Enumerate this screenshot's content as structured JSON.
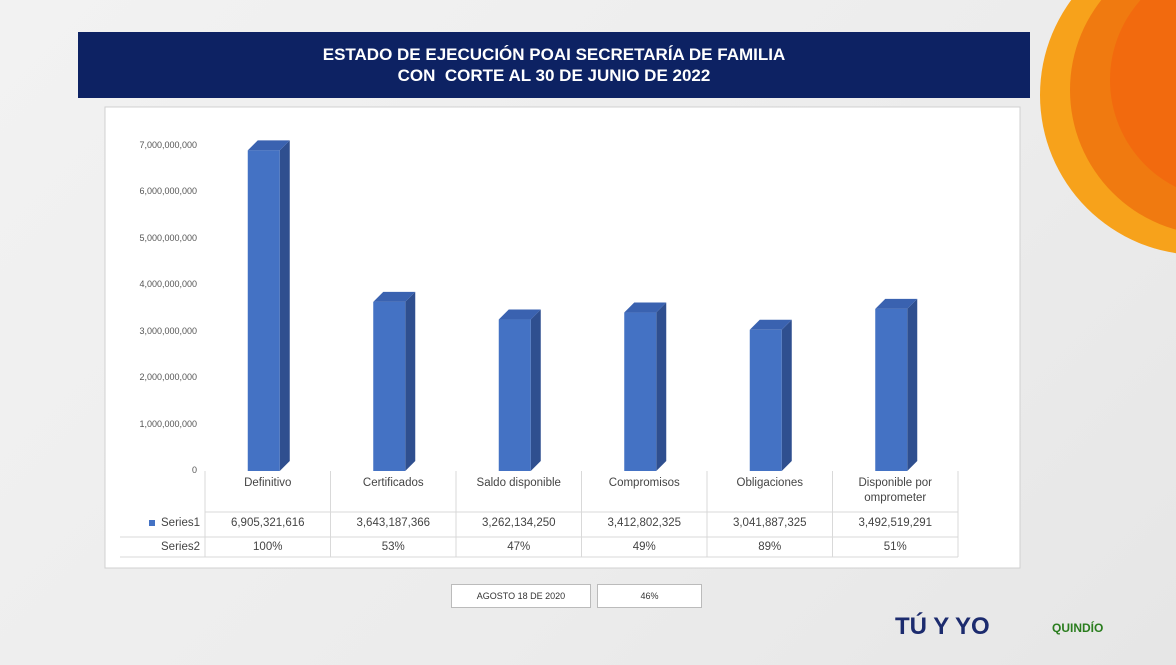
{
  "header": {
    "title": [
      "ESTADO DE EJECUCIÓN POAI SECRETARÍA DE FAMILIA",
      "CON  CORTE AL 30 DE JUNIO DE 2022"
    ]
  },
  "chart_data": {
    "type": "bar",
    "categories": [
      "Definitivo",
      "Certificados",
      "Saldo disponible",
      "Compromisos",
      "Obligaciones",
      "Disponible por omprometer"
    ],
    "series": [
      {
        "name": "Series1",
        "color": "#4472c4",
        "values": [
          6905321616,
          3643187366,
          3262134250,
          3412802325,
          3041887325,
          3492519291
        ],
        "value_labels": [
          "6,905,321,616",
          "3,643,187,366",
          "3,262,134,250",
          "3,412,802,325",
          "3,041,887,325",
          "3,492,519,291"
        ]
      },
      {
        "name": "Series2",
        "color": "#ed7d31",
        "values": [
          100,
          53,
          47,
          49,
          89,
          51
        ],
        "value_labels": [
          "100%",
          "53%",
          "47%",
          "49%",
          "89%",
          "51%"
        ]
      }
    ],
    "ylim": [
      0,
      7000000000
    ],
    "yticks": [
      0,
      {
        "value": 1000000000,
        "label": "1,000,000,000"
      },
      {
        "value": 2000000000,
        "label": "2,000,000,000"
      },
      {
        "value": 3000000000,
        "label": "3,000,000,000"
      },
      {
        "value": 4000000000,
        "label": "4,000,000,000"
      },
      {
        "value": 5000000000,
        "label": "5,000,000,000"
      },
      {
        "value": 6000000000,
        "label": "6,000,000,000"
      },
      {
        "value": 7000000000,
        "label": "7,000,000,000"
      }
    ],
    "grid": false
  },
  "footer": {
    "date": "AGOSTO 18 DE 2020",
    "percent": "46%",
    "logos": [
      "TÚ Y YO",
      "QUINDÍO"
    ]
  }
}
